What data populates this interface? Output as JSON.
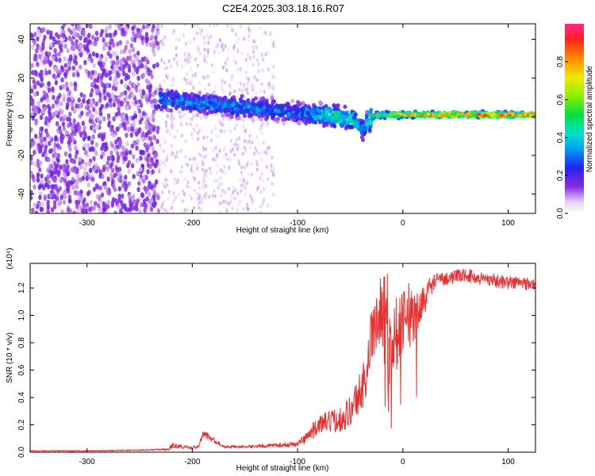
{
  "title": "C2E4.2025.303.18.16.R07",
  "chart_data": [
    {
      "type": "heatmap",
      "name": "spectrogram",
      "xlabel": "Height of straight line (km)",
      "ylabel": "Frequency (Hz)",
      "xlim": [
        -354,
        126
      ],
      "ylim": [
        -50,
        48
      ],
      "xticks": [
        -300,
        -200,
        -100,
        0,
        100
      ],
      "yticks": [
        -40,
        -20,
        0,
        20,
        40
      ],
      "colorbar": {
        "label": "Normalized spectral amplitude",
        "range": [
          0,
          1
        ],
        "ticks": [
          0.0,
          0.2,
          0.4,
          0.6,
          0.8
        ],
        "tick_labels": [
          "0.0",
          "0.2",
          "0.4",
          "0.6",
          "0.8"
        ]
      },
      "noise_region": {
        "x_from": -354,
        "x_to": -232,
        "typical_amplitude": 0.12
      },
      "signal_track": {
        "x": [
          -232,
          -200,
          -150,
          -100,
          -75,
          -60,
          -45,
          -38,
          -30,
          -20,
          0,
          50,
          126
        ],
        "center_freq": [
          9,
          7,
          5,
          2,
          1,
          0,
          -2,
          -7,
          0,
          1,
          1,
          1,
          1
        ],
        "peak_amplitude": [
          0.35,
          0.35,
          0.35,
          0.32,
          0.45,
          0.5,
          0.45,
          0.35,
          0.55,
          0.6,
          0.75,
          0.9,
          0.9
        ]
      }
    },
    {
      "type": "line",
      "name": "snr",
      "xlabel": "Height of straight line (km)",
      "ylabel": "SNR (10 * v/v)",
      "yscale_label": "(x10⁴)",
      "xlim": [
        -354,
        126
      ],
      "ylim": [
        0,
        1.38
      ],
      "xticks": [
        -300,
        -200,
        -100,
        0,
        100
      ],
      "yticks": [
        0.0,
        0.2,
        0.4,
        0.6,
        0.8,
        1.0,
        1.2
      ],
      "ytick_labels": [
        "0.0",
        "0.2",
        "0.4",
        "0.6",
        "0.8",
        "1.0",
        "1.2"
      ],
      "color": "#e83030",
      "series": {
        "name": "SNR",
        "x": [
          -354,
          -300,
          -250,
          -222,
          -220,
          -200,
          -193,
          -190,
          -170,
          -150,
          -120,
          -100,
          -90,
          -80,
          -70,
          -60,
          -50,
          -40,
          -35,
          -30,
          -25,
          -20,
          -15,
          -10,
          -5,
          0,
          5,
          10,
          15,
          20,
          25,
          30,
          40,
          50,
          60,
          70,
          80,
          90,
          100,
          110,
          120,
          126
        ],
        "y": [
          0.01,
          0.01,
          0.015,
          0.02,
          0.05,
          0.03,
          0.05,
          0.14,
          0.04,
          0.04,
          0.05,
          0.06,
          0.12,
          0.2,
          0.22,
          0.24,
          0.3,
          0.45,
          0.55,
          0.85,
          0.95,
          1.1,
          1.15,
          0.8,
          0.9,
          1.0,
          1.1,
          0.95,
          1.05,
          1.1,
          1.2,
          1.25,
          1.27,
          1.28,
          1.3,
          1.27,
          1.27,
          1.25,
          1.24,
          1.24,
          1.23,
          1.22
        ],
        "noise_amplitude": [
          0.004,
          0.004,
          0.005,
          0.008,
          0.02,
          0.01,
          0.02,
          0.03,
          0.01,
          0.01,
          0.015,
          0.02,
          0.05,
          0.07,
          0.08,
          0.09,
          0.12,
          0.16,
          0.18,
          0.2,
          0.22,
          0.25,
          0.25,
          0.3,
          0.3,
          0.25,
          0.2,
          0.18,
          0.15,
          0.12,
          0.08,
          0.06,
          0.05,
          0.05,
          0.05,
          0.05,
          0.05,
          0.05,
          0.05,
          0.05,
          0.05,
          0.05
        ]
      }
    }
  ]
}
